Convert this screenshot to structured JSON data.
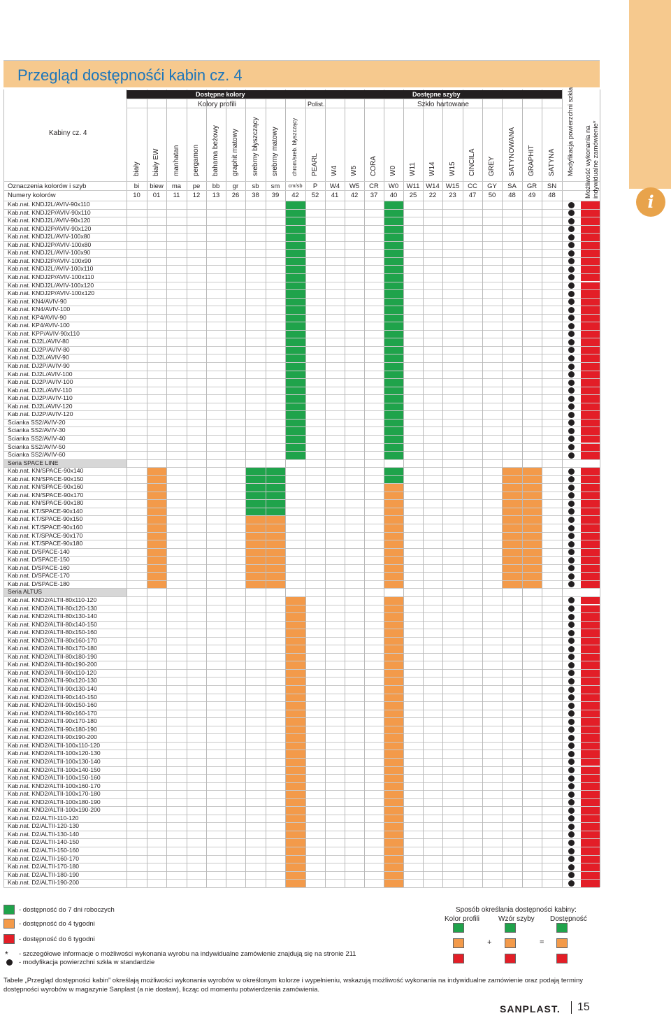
{
  "page_title": "Przegląd dostępnośći kabin cz. 4",
  "header": {
    "kabiny_label": "Kabiny cz. 4",
    "group_colors": "Dostępne kolory",
    "group_glass": "Dostępne szyby",
    "sub_profile": "Kolory profili",
    "sub_polist": "Polist.",
    "sub_hartowane": "Szkło hartowane",
    "mod_label": "Modyfikacja powierzchni szkła",
    "custom_label_1": "Możliwość wykonania na",
    "custom_label_2": "indywidualne zamówienie*"
  },
  "columns": [
    {
      "name": "biały",
      "code": "bi",
      "num": "10"
    },
    {
      "name": "biały EW",
      "code": "biew",
      "num": "01"
    },
    {
      "name": "manhatan",
      "code": "ma",
      "num": "11"
    },
    {
      "name": "pergamon",
      "code": "pe",
      "num": "12"
    },
    {
      "name": "bahama beżowy",
      "code": "bb",
      "num": "13"
    },
    {
      "name": "graphit matowy",
      "code": "gr",
      "num": "26"
    },
    {
      "name": "srebrny błyszczący",
      "code": "sb",
      "num": "38"
    },
    {
      "name": "srebrny matowy",
      "code": "sm",
      "num": "39"
    },
    {
      "name": "chrom/sreb. błyszczący",
      "code": "cm/sb",
      "num": "42"
    },
    {
      "name": "PEARL",
      "code": "P",
      "num": "52"
    },
    {
      "name": "W4",
      "code": "W4",
      "num": "41"
    },
    {
      "name": "W5",
      "code": "W5",
      "num": "42"
    },
    {
      "name": "CORA",
      "code": "CR",
      "num": "37"
    },
    {
      "name": "W0",
      "code": "W0",
      "num": "40"
    },
    {
      "name": "W11",
      "code": "W11",
      "num": "25"
    },
    {
      "name": "W14",
      "code": "W14",
      "num": "22"
    },
    {
      "name": "W15",
      "code": "W15",
      "num": "23"
    },
    {
      "name": "CINCILA",
      "code": "CC",
      "num": "47"
    },
    {
      "name": "GREY",
      "code": "GY",
      "num": "50"
    },
    {
      "name": "SATYNOWANA",
      "code": "SA",
      "num": "48"
    },
    {
      "name": "GRAPHIT",
      "code": "GR",
      "num": "49"
    },
    {
      "name": "SATYNA",
      "code": "SN",
      "num": "48"
    }
  ],
  "row_header_codes": "Oznaczenia kolorów i szyb",
  "row_header_nums": "Numery kolorów",
  "colors": {
    "green": "#1fa34b",
    "orange": "#f39a4a",
    "red": "#e31e27",
    "section": "#d7d7d7",
    "accent": "#f6c98e",
    "title": "#1b75bb"
  },
  "rows": [
    "Kab.nat. KNDJ2L/AVIV-90x110",
    "Kab.nat. KNDJ2P/AVIV-90x110",
    "Kab.nat. KNDJ2L/AVIV-90x120",
    "Kab.nat. KNDJ2P/AVIV-90x120",
    "Kab.nat. KNDJ2L/AVIV-100x80",
    "Kab.nat. KNDJ2P/AVIV-100x80",
    "Kab.nat. KNDJ2L/AVIV-100x90",
    "Kab.nat. KNDJ2P/AVIV-100x90",
    "Kab.nat. KNDJ2L/AVIV-100x110",
    "Kab.nat. KNDJ2P/AVIV-100x110",
    "Kab.nat. KNDJ2L/AVIV-100x120",
    "Kab.nat. KNDJ2P/AVIV-100x120",
    "Kab.nat. KN4/AVIV-90",
    "Kab.nat. KN4/AVIV-100",
    "Kab.nat. KP4/AVIV-90",
    "Kab.nat. KP4/AVIV-100",
    "Kab.nat. KPP/AVIV-90x110",
    "Kab.nat. DJ2L/AVIV-80",
    "Kab.nat. DJ2P/AVIV-80",
    "Kab.nat. DJ2L/AVIV-90",
    "Kab.nat. DJ2P/AVIV-90",
    "Kab.nat. DJ2L/AVIV-100",
    "Kab.nat. DJ2P/AVIV-100",
    "Kab.nat. DJ2L/AVIV-110",
    "Kab.nat. DJ2P/AVIV-110",
    "Kab.nat. DJ2L/AVIV-120",
    "Kab.nat. DJ2P/AVIV-120",
    "Ścianka SS2/AVIV-20",
    "Ścianka SS2/AVIV-30",
    "Ścianka SS2/AVIV-40",
    "Ścianka SS2/AVIV-50",
    "Ścianka SS2/AVIV-60",
    "Seria SPACE LINE",
    "Kab.nat. KN/SPACE-90x140",
    "Kab.nat. KN/SPACE-90x150",
    "Kab.nat. KN/SPACE-90x160",
    "Kab.nat. KN/SPACE-90x170",
    "Kab.nat. KN/SPACE-90x180",
    "Kab.nat. KT/SPACE-90x140",
    "Kab.nat. KT/SPACE-90x150",
    "Kab.nat. KT/SPACE-90x160",
    "Kab.nat. KT/SPACE-90x170",
    "Kab.nat. KT/SPACE-90x180",
    "Kab.nat. D/SPACE-140",
    "Kab.nat. D/SPACE-150",
    "Kab.nat. D/SPACE-160",
    "Kab.nat. D/SPACE-170",
    "Kab.nat. D/SPACE-180",
    "Seria ALTUS",
    "Kab.nat. KND2/ALTII-80x110-120",
    "Kab.nat. KND2/ALTII-80x120-130",
    "Kab.nat. KND2/ALTII-80x130-140",
    "Kab.nat. KND2/ALTII-80x140-150",
    "Kab.nat. KND2/ALTII-80x150-160",
    "Kab.nat. KND2/ALTII-80x160-170",
    "Kab.nat. KND2/ALTII-80x170-180",
    "Kab.nat. KND2/ALTII-80x180-190",
    "Kab.nat. KND2/ALTII-80x190-200",
    "Kab.nat. KND2/ALTII-90x110-120",
    "Kab.nat. KND2/ALTII-90x120-130",
    "Kab.nat. KND2/ALTII-90x130-140",
    "Kab.nat. KND2/ALTII-90x140-150",
    "Kab.nat. KND2/ALTII-90x150-160",
    "Kab.nat. KND2/ALTII-90x160-170",
    "Kab.nat. KND2/ALTII-90x170-180",
    "Kab.nat. KND2/ALTII-90x180-190",
    "Kab.nat. KND2/ALTII-90x190-200",
    "Kab.nat. KND2/ALTII-100x110-120",
    "Kab.nat. KND2/ALTII-100x120-130",
    "Kab.nat. KND2/ALTII-100x130-140",
    "Kab.nat. KND2/ALTII-100x140-150",
    "Kab.nat. KND2/ALTII-100x150-160",
    "Kab.nat. KND2/ALTII-100x160-170",
    "Kab.nat. KND2/ALTII-100x170-180",
    "Kab.nat. KND2/ALTII-100x180-190",
    "Kab.nat. KND2/ALTII-100x190-200",
    "Kab.nat. D2/ALTII-110-120",
    "Kab.nat. D2/ALTII-120-130",
    "Kab.nat. D2/ALTII-130-140",
    "Kab.nat. D2/ALTII-140-150",
    "Kab.nat. D2/ALTII-150-160",
    "Kab.nat. D2/ALTII-160-170",
    "Kab.nat. D2/ALTII-170-180",
    "Kab.nat. D2/ALTII-180-190",
    "Kab.nat. D2/ALTII-190-200"
  ],
  "legend": {
    "g7": "- dostępność do 7 dni roboczych",
    "g4": "- dostępność do 4 tygodni",
    "g6": "- dostępność do 6 tygodni",
    "star": "*",
    "note1": "- szczegółowe informacje o możliwości wykonania wyrobu na indywidualne zamówienie znajdują się na stronie 211",
    "note2": "- modyfikacja powierzchni szkła w standardzie",
    "method_title": "Sposób określania dostępności kabiny:",
    "m_col1": "Kolor profili",
    "m_col2": "Wzór szyby",
    "m_col3": "Dostępność",
    "plus": "+",
    "equals": "="
  },
  "footer_text": "Tabele „Przegląd dostępności kabin” określają możliwości wykonania wyrobów w określonym kolorze i wypełnieniu, wskazują możliwość wykonania na indywidualne zamówienie oraz podają terminy dostępności wyrobów w magazynie Sanplast (a nie dostaw), licząc od momentu potwierdzenia zamówienia.",
  "brand": "SANPLAST.",
  "page_number": "15"
}
